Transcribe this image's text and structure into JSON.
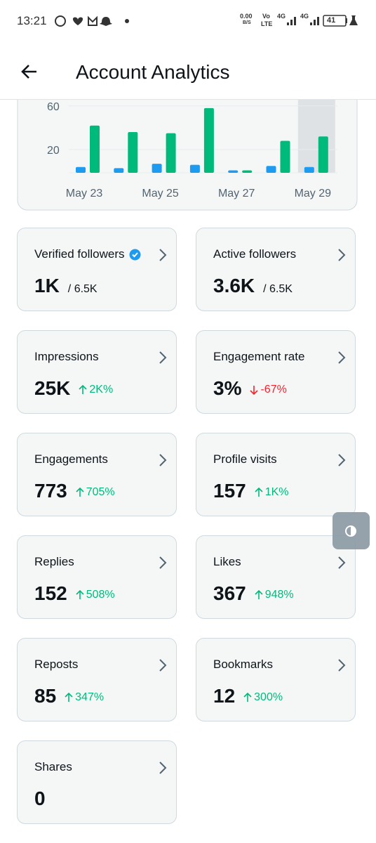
{
  "status_bar": {
    "time": "13:21",
    "net_speed": "0.00",
    "net_unit": "B/S",
    "volte": "Vo",
    "lte": "LTE",
    "network_1": "4G",
    "network_2": "4G",
    "battery": "41"
  },
  "header": {
    "title": "Account Analytics"
  },
  "chart": {
    "type": "bar",
    "categories": [
      "May 23",
      null,
      "May 25",
      null,
      "May 27",
      null,
      "May 29"
    ],
    "series": [
      {
        "color": "#1d9bf0",
        "values": [
          4,
          3,
          7,
          6,
          1,
          5,
          4
        ]
      },
      {
        "color": "#00ba7c",
        "values": [
          42,
          36,
          35,
          58,
          1,
          28,
          32
        ]
      }
    ],
    "ylim": [
      0,
      65
    ],
    "yticks": [
      20,
      60
    ],
    "grid": true,
    "highlight_index": 6
  },
  "cards": [
    {
      "label": "Verified followers",
      "value": "1K",
      "total": "/ 6.5K",
      "verified": true
    },
    {
      "label": "Active followers",
      "value": "3.6K",
      "total": "/ 6.5K"
    },
    {
      "label": "Impressions",
      "value": "25K",
      "change": "2K%",
      "trend": "up"
    },
    {
      "label": "Engagement rate",
      "value": "3%",
      "change": "-67%",
      "trend": "down"
    },
    {
      "label": "Engagements",
      "value": "773",
      "change": "705%",
      "trend": "up"
    },
    {
      "label": "Profile visits",
      "value": "157",
      "change": "1K%",
      "trend": "up"
    },
    {
      "label": "Replies",
      "value": "152",
      "change": "508%",
      "trend": "up"
    },
    {
      "label": "Likes",
      "value": "367",
      "change": "948%",
      "trend": "up"
    },
    {
      "label": "Reposts",
      "value": "85",
      "change": "347%",
      "trend": "up"
    },
    {
      "label": "Bookmarks",
      "value": "12",
      "change": "300%",
      "trend": "up"
    },
    {
      "label": "Shares",
      "value": "0"
    }
  ]
}
